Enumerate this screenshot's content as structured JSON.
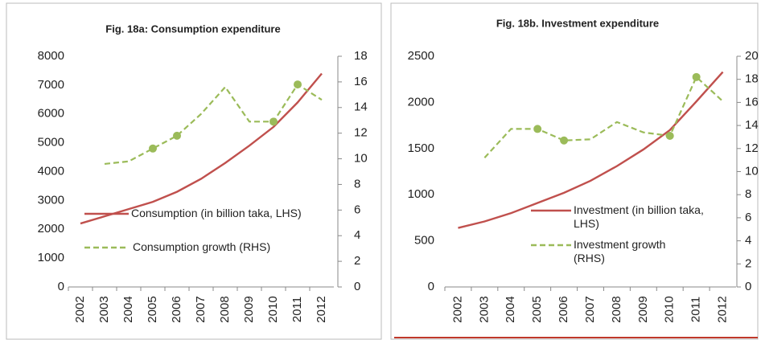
{
  "chart_data": [
    {
      "type": "line",
      "title": "Fig. 18a: Consumption expenditure",
      "categories": [
        "2002",
        "2003",
        "2004",
        "2005",
        "2006",
        "2007",
        "2008",
        "2009",
        "2010",
        "2011",
        "2012"
      ],
      "series": [
        {
          "name": "Consumption (in billion taka, LHS)",
          "color": "#c0504d",
          "style": "solid",
          "values": [
            2200,
            2450,
            2700,
            2950,
            3300,
            3750,
            4300,
            4900,
            5550,
            6400,
            7400
          ]
        },
        {
          "name": "Consumption growth (RHS)",
          "color": "#9bbb59",
          "style": "dashed",
          "axis": "y2",
          "marker_points": [
            3,
            4,
            8,
            9
          ],
          "values": [
            null,
            9.6,
            9.8,
            10.8,
            11.8,
            13.5,
            15.6,
            12.9,
            12.9,
            15.8,
            14.6
          ]
        }
      ],
      "ylim": [
        0,
        8000
      ],
      "yticks": [
        0,
        1000,
        2000,
        3000,
        4000,
        5000,
        6000,
        7000,
        8000
      ],
      "y2lim": [
        0,
        18
      ],
      "y2ticks": [
        0,
        2,
        4,
        6,
        8,
        10,
        12,
        14,
        16,
        18
      ]
    },
    {
      "type": "line",
      "title": "Fig. 18b. Investment expenditure",
      "categories": [
        "2002",
        "2003",
        "2004",
        "2005",
        "2006",
        "2007",
        "2008",
        "2009",
        "2010",
        "2011",
        "2012"
      ],
      "series": [
        {
          "name": "Investment (in billion taka, LHS)",
          "color": "#c0504d",
          "style": "solid",
          "values": [
            640,
            710,
            800,
            910,
            1020,
            1150,
            1310,
            1490,
            1700,
            2010,
            2330
          ]
        },
        {
          "name": "Investment growth (RHS)",
          "color": "#9bbb59",
          "style": "dashed",
          "axis": "y2",
          "marker_points": [
            3,
            4,
            8,
            9
          ],
          "values": [
            null,
            11.2,
            13.7,
            13.7,
            12.7,
            12.8,
            14.3,
            13.4,
            13.1,
            18.2,
            16.1
          ]
        }
      ],
      "ylim": [
        0,
        2500
      ],
      "yticks": [
        0,
        500,
        1000,
        1500,
        2000,
        2500
      ],
      "y2lim": [
        0,
        20
      ],
      "y2ticks": [
        0,
        2,
        4,
        6,
        8,
        10,
        12,
        14,
        16,
        18,
        20
      ]
    }
  ]
}
